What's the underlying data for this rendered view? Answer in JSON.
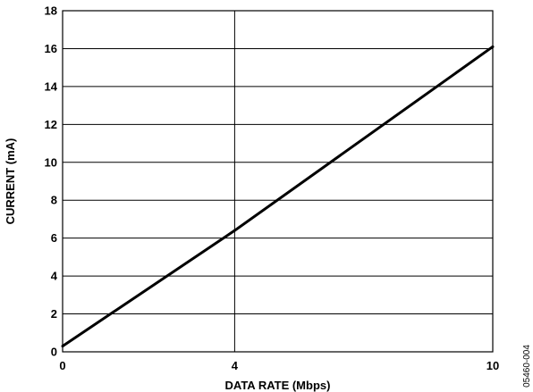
{
  "chart_data": {
    "type": "line",
    "xlabel": "DATA RATE (Mbps)",
    "ylabel": "CURRENT (mA)",
    "xlim": [
      0,
      10
    ],
    "ylim": [
      0,
      18
    ],
    "x_ticks": [
      0,
      4,
      10
    ],
    "y_ticks": [
      0,
      2,
      4,
      6,
      8,
      10,
      12,
      14,
      16,
      18
    ],
    "grid": true,
    "series": [
      {
        "x": [
          0,
          4,
          10
        ],
        "y": [
          0.3,
          6.4,
          16.1
        ]
      }
    ],
    "line_color": "#000000",
    "figure_code": "05460-004"
  }
}
